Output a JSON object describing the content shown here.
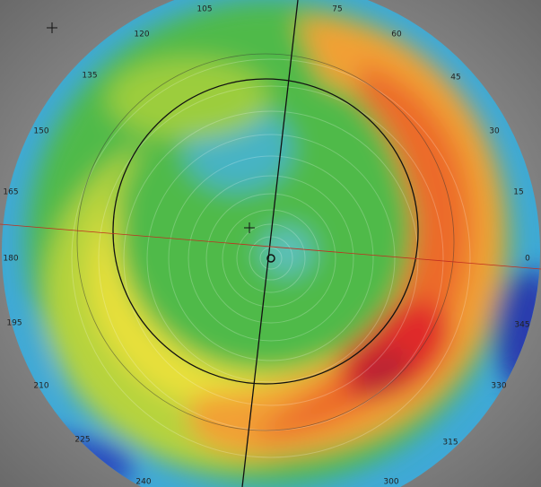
{
  "angle_labels": [
    "105",
    "75",
    "60",
    "120",
    "135",
    "45",
    "150",
    "30",
    "165",
    "15",
    "180",
    "0",
    "195",
    "345",
    "210",
    "330",
    "225",
    "315",
    "240",
    "300"
  ]
}
